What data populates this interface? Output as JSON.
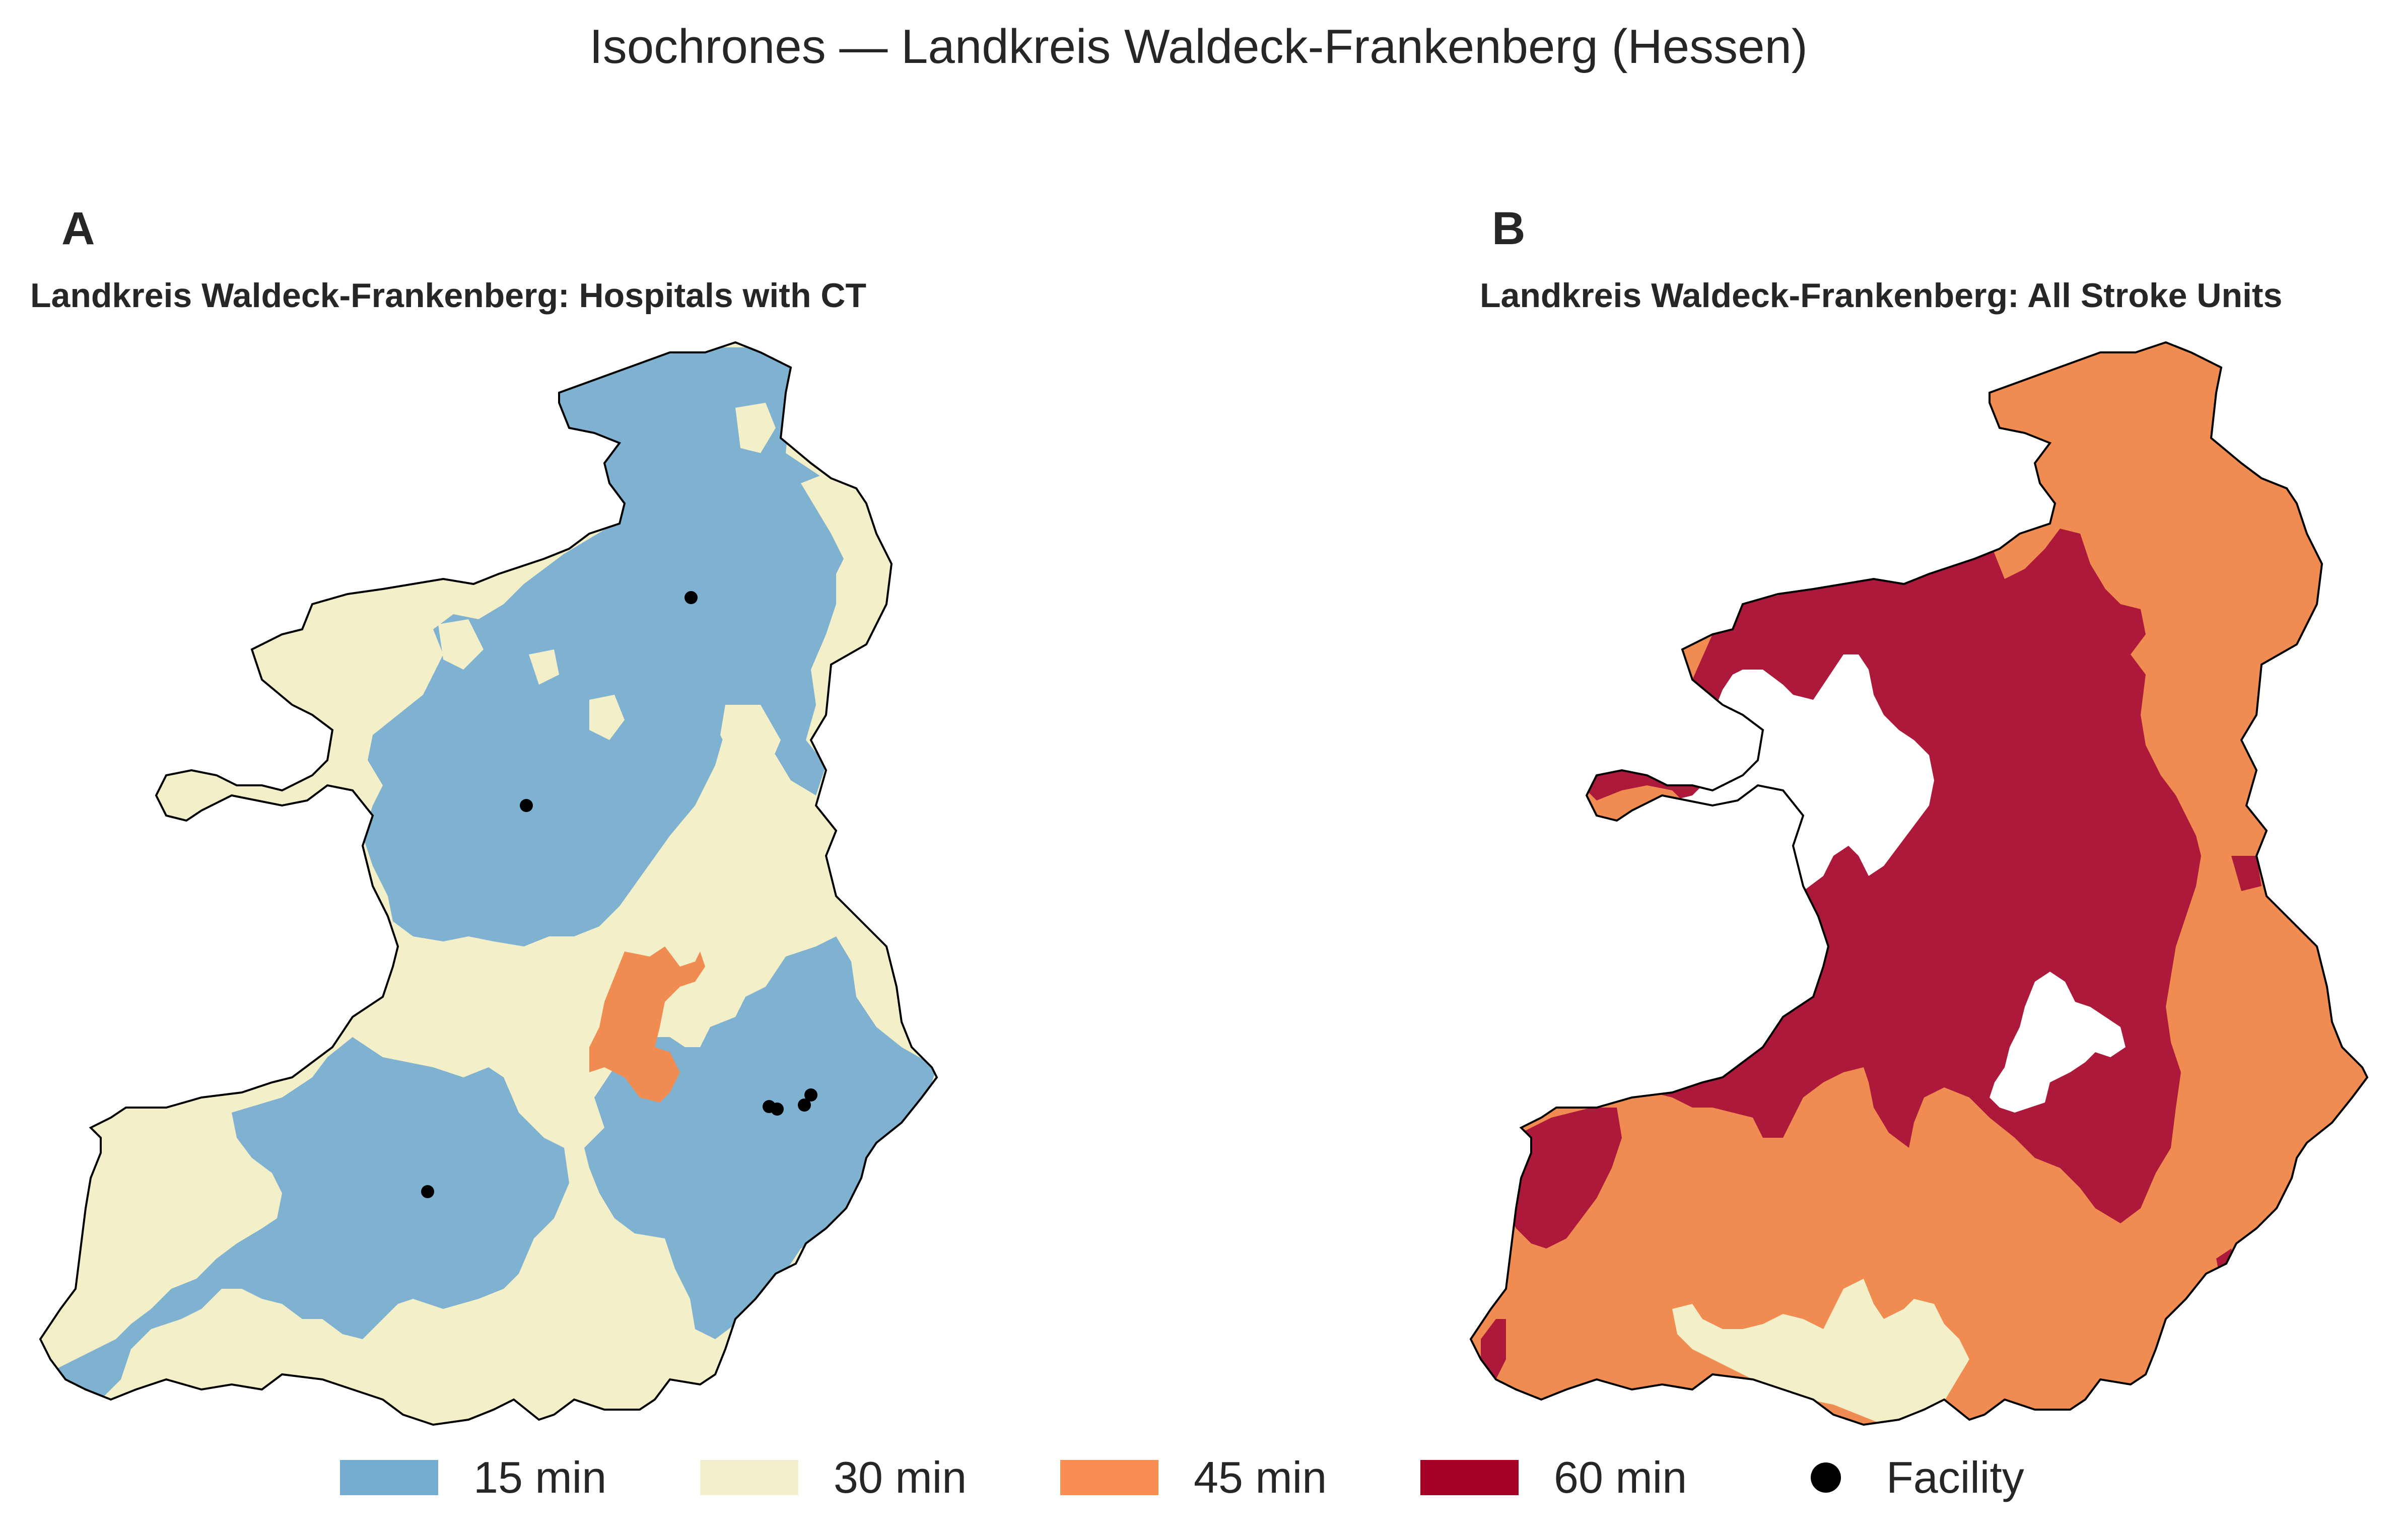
{
  "title": "Isochrones — Landkreis Waldeck-Frankenberg (Hessen)",
  "panels": [
    {
      "letter": "A",
      "title": "Landkreis Waldeck-Frankenberg: Hospitals with CT"
    },
    {
      "letter": "B",
      "title": "Landkreis Waldeck-Frankenberg: All Stroke Units"
    }
  ],
  "legend": [
    {
      "label": "15 min",
      "color": "#74add1"
    },
    {
      "label": "30 min",
      "color": "#f2f0cc"
    },
    {
      "label": "45 min",
      "color": "#f98e52"
    },
    {
      "label": "60 min",
      "color": "#a50026"
    },
    {
      "label": "Facility",
      "color": "#000000",
      "marker": "dot"
    }
  ],
  "fill_colors": {
    "min15": "#7fb1d1",
    "min30": "#f3efc8",
    "min45": "#f08c52",
    "min60": "#ad193a",
    "outline": "#000000"
  }
}
